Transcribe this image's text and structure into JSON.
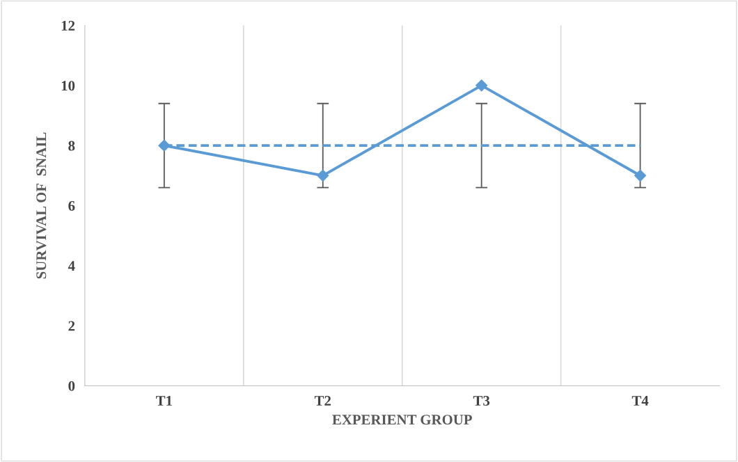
{
  "chart_data": {
    "type": "line",
    "xlabel": "EXPERIENT GROUP",
    "ylabel": "SURVIVAL OF  SNAIL",
    "categories": [
      "T1",
      "T2",
      "T3",
      "T4"
    ],
    "series": [
      {
        "color": "#5b9bd5",
        "values": [
          8,
          7,
          10,
          7
        ],
        "marker": "diamond",
        "line_style": "solid"
      },
      {
        "color": "#5b9bd5",
        "values": [
          8,
          8,
          8,
          8
        ],
        "marker": "none",
        "line_style": "dashed",
        "errors": [
          1.4,
          1.4,
          1.4,
          1.4
        ]
      }
    ],
    "ylim": [
      0,
      12
    ],
    "yticks": [
      0,
      2,
      4,
      6,
      8,
      10,
      12
    ],
    "grid": "x"
  }
}
